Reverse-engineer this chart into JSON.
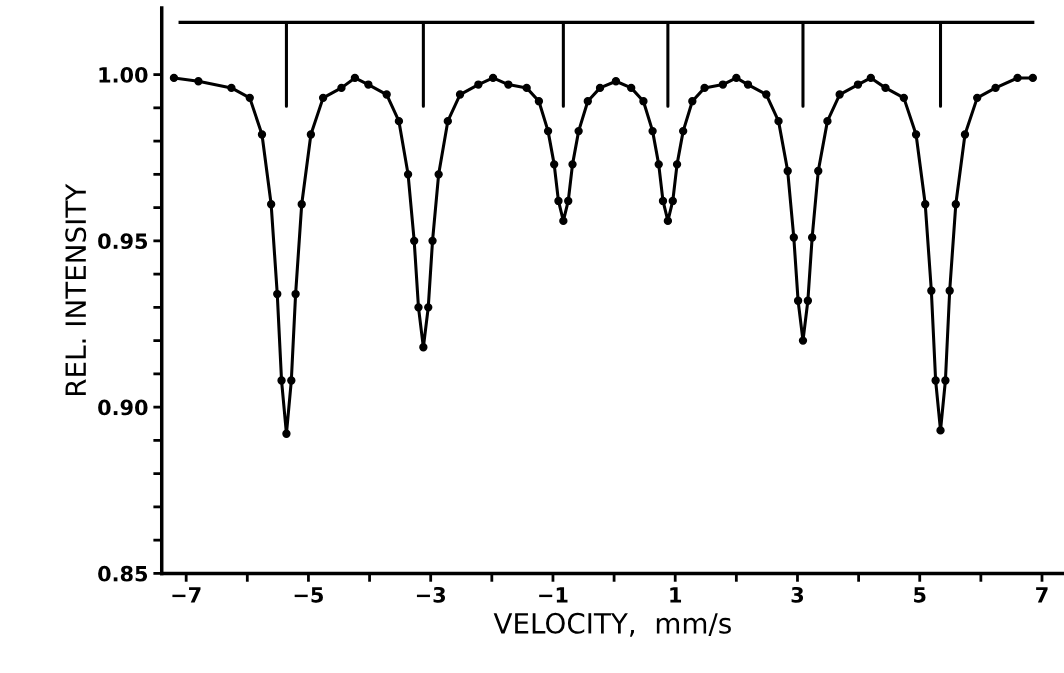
{
  "chart_data": {
    "type": "line",
    "xlabel": "VELOCITY,  mm/s",
    "ylabel": "REL. INTENSITY",
    "series": [
      {
        "color": "#000000",
        "marker": "circle",
        "x": [
          -7.2,
          -6.8,
          -6.26,
          -5.96,
          -5.76,
          -5.61,
          -5.51,
          -5.44,
          -5.36,
          -5.28,
          -5.21,
          -5.11,
          -4.96,
          -4.76,
          -4.46,
          -4.24,
          -4.02,
          -3.72,
          -3.52,
          -3.37,
          -3.27,
          -3.2,
          -3.12,
          -3.04,
          -2.97,
          -2.87,
          -2.72,
          -2.52,
          -2.22,
          -1.98,
          -1.73,
          -1.43,
          -1.23,
          -1.08,
          -0.98,
          -0.91,
          -0.83,
          -0.75,
          -0.68,
          -0.58,
          -0.43,
          -0.23,
          0.03,
          0.28,
          0.48,
          0.63,
          0.73,
          0.8,
          0.88,
          0.96,
          1.03,
          1.13,
          1.28,
          1.48,
          1.78,
          2.0,
          2.19,
          2.49,
          2.69,
          2.84,
          2.94,
          3.01,
          3.09,
          3.17,
          3.24,
          3.34,
          3.49,
          3.69,
          3.99,
          4.2,
          4.44,
          4.74,
          4.94,
          5.09,
          5.19,
          5.26,
          5.34,
          5.42,
          5.49,
          5.59,
          5.74,
          5.94,
          6.24,
          6.6,
          6.85
        ],
        "values": [
          0.999,
          0.998,
          0.996,
          0.993,
          0.982,
          0.961,
          0.934,
          0.908,
          0.892,
          0.908,
          0.934,
          0.961,
          0.982,
          0.993,
          0.996,
          0.999,
          0.997,
          0.994,
          0.986,
          0.97,
          0.95,
          0.93,
          0.918,
          0.93,
          0.95,
          0.97,
          0.986,
          0.994,
          0.997,
          0.999,
          0.997,
          0.996,
          0.992,
          0.983,
          0.973,
          0.962,
          0.956,
          0.962,
          0.973,
          0.983,
          0.992,
          0.996,
          0.998,
          0.996,
          0.992,
          0.983,
          0.973,
          0.962,
          0.956,
          0.962,
          0.973,
          0.983,
          0.992,
          0.996,
          0.997,
          0.999,
          0.997,
          0.994,
          0.986,
          0.971,
          0.951,
          0.932,
          0.92,
          0.932,
          0.951,
          0.971,
          0.986,
          0.994,
          0.997,
          0.999,
          0.996,
          0.993,
          0.982,
          0.961,
          0.935,
          0.908,
          0.893,
          0.908,
          0.935,
          0.961,
          0.982,
          0.993,
          0.996,
          0.999,
          0.999
        ]
      },
      {
        "color": "#000000",
        "marker": "none",
        "x": [
          -7.1,
          -5.36,
          -5.36,
          -5.36,
          -3.12,
          -3.12,
          -3.12,
          -0.83,
          -0.83,
          -0.83,
          0.88,
          0.88,
          0.88,
          3.09,
          3.09,
          3.09,
          5.34,
          5.34,
          5.34,
          6.85
        ],
        "values": [
          1.0157,
          1.0157,
          0.9905,
          1.0157,
          1.0157,
          0.9905,
          1.0157,
          1.0157,
          0.9905,
          1.0157,
          1.0157,
          0.9905,
          1.0157,
          1.0157,
          0.9905,
          1.0157,
          1.0157,
          0.9905,
          1.0157,
          1.0157
        ]
      }
    ],
    "xlim": [
      -7.4,
      7.36
    ],
    "ylim": [
      0.85,
      1.02
    ],
    "xticks": [
      -7,
      {
        "value": -6,
        "label": null
      },
      -5,
      {
        "value": -4,
        "label": null
      },
      -3,
      {
        "value": -2,
        "label": null
      },
      -1,
      {
        "value": 0,
        "label": null
      },
      1,
      {
        "value": 2,
        "label": null
      },
      3,
      {
        "value": 4,
        "label": null
      },
      5,
      {
        "value": 6,
        "label": null
      },
      7
    ],
    "yticks": [
      {
        "value": 0.85,
        "label": "0.85"
      },
      {
        "value": 0.86,
        "label": null
      },
      {
        "value": 0.87,
        "label": null
      },
      {
        "value": 0.88,
        "label": null
      },
      {
        "value": 0.89,
        "label": null
      },
      {
        "value": 0.9,
        "label": "0.90"
      },
      {
        "value": 0.91,
        "label": null
      },
      {
        "value": 0.92,
        "label": null
      },
      {
        "value": 0.93,
        "label": null
      },
      {
        "value": 0.94,
        "label": null
      },
      {
        "value": 0.95,
        "label": "0.95"
      },
      {
        "value": 0.96,
        "label": null
      },
      {
        "value": 0.97,
        "label": null
      },
      {
        "value": 0.98,
        "label": null
      },
      {
        "value": 0.99,
        "label": null
      },
      {
        "value": 1.0,
        "label": "1.00"
      }
    ],
    "grid": false,
    "legend": false
  }
}
